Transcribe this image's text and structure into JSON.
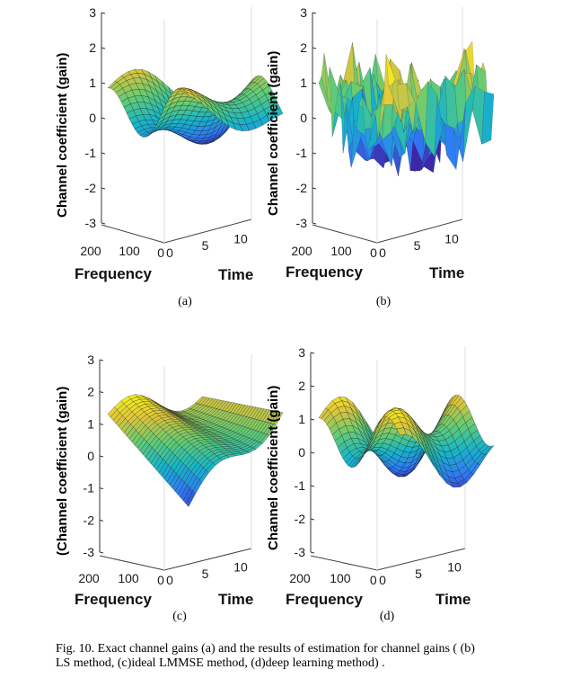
{
  "panels": [
    {
      "id": "a",
      "sublabel": "(a)",
      "ylabel": "Channel coefficient (gain)",
      "xlabel": "Frequency",
      "tlabel": "Time"
    },
    {
      "id": "b",
      "sublabel": "(b)",
      "ylabel": "Channel coefficient (gain)",
      "xlabel": "Frequency",
      "tlabel": "Time"
    },
    {
      "id": "c",
      "sublabel": "(c)",
      "ylabel": "(Channel coefficient (gain)",
      "xlabel": "Frequency",
      "tlabel": "Time"
    },
    {
      "id": "d",
      "sublabel": "(d)",
      "ylabel": "Channel coefficient (gain)",
      "xlabel": "Frequency",
      "tlabel": "Time"
    }
  ],
  "z_ticks": [
    "3",
    "2",
    "1",
    "0",
    "-1",
    "-2",
    "-3"
  ],
  "freq_ticks": [
    "200",
    "100",
    "0"
  ],
  "time_ticks": [
    "0",
    "5",
    "10"
  ],
  "caption": "Fig. 10. Exact channel gains (a) and the results of estimation for channel gains ( (b) LS method, (c)ideal LMMSE method, (d)deep learning method) .",
  "colormap": [
    "#3e26a8",
    "#2f7cf6",
    "#17b5c8",
    "#62cc74",
    "#e0c53a",
    "#f9fb15"
  ]
}
